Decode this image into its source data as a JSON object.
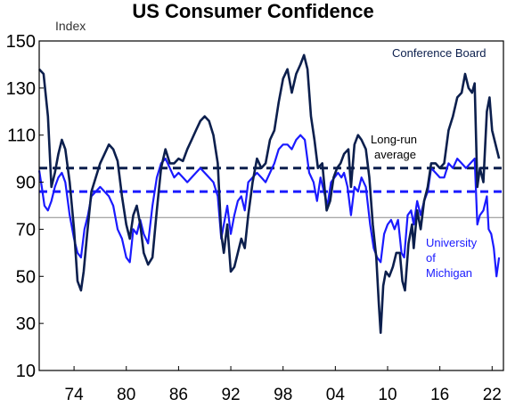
{
  "chart_data": {
    "type": "line",
    "title": "US Consumer Confidence",
    "ylabel": "Index",
    "xlabel": "",
    "ylim": [
      10,
      150
    ],
    "xlim": [
      1970,
      2023.3
    ],
    "yticks": [
      10,
      30,
      50,
      70,
      90,
      110,
      130,
      150
    ],
    "xticks": [
      {
        "year": 1974,
        "label": "74"
      },
      {
        "year": 1980,
        "label": "80"
      },
      {
        "year": 1986,
        "label": "86"
      },
      {
        "year": 1992,
        "label": "92"
      },
      {
        "year": 1998,
        "label": "98"
      },
      {
        "year": 2004,
        "label": "04"
      },
      {
        "year": 2010,
        "label": "10"
      },
      {
        "year": 2016,
        "label": "16"
      },
      {
        "year": 2022,
        "label": "22"
      }
    ],
    "grid": false,
    "colors": {
      "conference_board": "#0c1f4d",
      "michigan": "#1a1aff",
      "reference_line": "#8a8a8a",
      "axis": "#000000"
    },
    "series": [
      {
        "name": "Conference Board",
        "color": "#0c1f4d",
        "points": [
          [
            1970.0,
            138
          ],
          [
            1970.5,
            136
          ],
          [
            1971.0,
            118
          ],
          [
            1971.4,
            88
          ],
          [
            1971.8,
            94
          ],
          [
            1972.2,
            102
          ],
          [
            1972.6,
            108
          ],
          [
            1973.0,
            104
          ],
          [
            1973.5,
            90
          ],
          [
            1974.0,
            70
          ],
          [
            1974.4,
            48
          ],
          [
            1974.8,
            44
          ],
          [
            1975.1,
            52
          ],
          [
            1975.5,
            68
          ],
          [
            1976.0,
            86
          ],
          [
            1976.5,
            92
          ],
          [
            1977.0,
            98
          ],
          [
            1977.5,
            102
          ],
          [
            1978.0,
            106
          ],
          [
            1978.5,
            104
          ],
          [
            1979.0,
            99
          ],
          [
            1979.5,
            84
          ],
          [
            1980.0,
            72
          ],
          [
            1980.4,
            66
          ],
          [
            1980.8,
            76
          ],
          [
            1981.2,
            80
          ],
          [
            1981.6,
            72
          ],
          [
            1982.0,
            60
          ],
          [
            1982.5,
            55
          ],
          [
            1983.0,
            58
          ],
          [
            1983.5,
            78
          ],
          [
            1984.0,
            96
          ],
          [
            1984.5,
            104
          ],
          [
            1985.0,
            98
          ],
          [
            1985.5,
            98
          ],
          [
            1986.0,
            100
          ],
          [
            1986.5,
            99
          ],
          [
            1987.0,
            104
          ],
          [
            1987.5,
            108
          ],
          [
            1988.0,
            112
          ],
          [
            1988.5,
            116
          ],
          [
            1989.0,
            118
          ],
          [
            1989.5,
            116
          ],
          [
            1990.0,
            110
          ],
          [
            1990.5,
            98
          ],
          [
            1990.9,
            68
          ],
          [
            1991.2,
            60
          ],
          [
            1991.6,
            72
          ],
          [
            1992.0,
            52
          ],
          [
            1992.4,
            54
          ],
          [
            1992.8,
            60
          ],
          [
            1993.2,
            66
          ],
          [
            1993.6,
            62
          ],
          [
            1994.0,
            76
          ],
          [
            1994.5,
            90
          ],
          [
            1995.0,
            100
          ],
          [
            1995.5,
            96
          ],
          [
            1996.0,
            98
          ],
          [
            1996.5,
            108
          ],
          [
            1997.0,
            112
          ],
          [
            1997.5,
            124
          ],
          [
            1998.0,
            134
          ],
          [
            1998.5,
            138
          ],
          [
            1999.0,
            128
          ],
          [
            1999.5,
            136
          ],
          [
            2000.0,
            140
          ],
          [
            2000.4,
            144
          ],
          [
            2000.8,
            138
          ],
          [
            2001.2,
            118
          ],
          [
            2001.6,
            108
          ],
          [
            2002.0,
            96
          ],
          [
            2002.5,
            98
          ],
          [
            2003.0,
            78
          ],
          [
            2003.4,
            82
          ],
          [
            2003.8,
            92
          ],
          [
            2004.2,
            96
          ],
          [
            2004.6,
            98
          ],
          [
            2005.0,
            102
          ],
          [
            2005.5,
            104
          ],
          [
            2005.8,
            88
          ],
          [
            2006.2,
            106
          ],
          [
            2006.6,
            110
          ],
          [
            2007.0,
            108
          ],
          [
            2007.5,
            104
          ],
          [
            2007.9,
            92
          ],
          [
            2008.3,
            72
          ],
          [
            2008.7,
            58
          ],
          [
            2009.0,
            38
          ],
          [
            2009.2,
            26
          ],
          [
            2009.5,
            46
          ],
          [
            2009.8,
            52
          ],
          [
            2010.2,
            50
          ],
          [
            2010.6,
            54
          ],
          [
            2011.0,
            60
          ],
          [
            2011.4,
            60
          ],
          [
            2011.7,
            48
          ],
          [
            2012.0,
            44
          ],
          [
            2012.4,
            64
          ],
          [
            2012.8,
            72
          ],
          [
            2013.0,
            62
          ],
          [
            2013.4,
            78
          ],
          [
            2013.8,
            70
          ],
          [
            2014.2,
            82
          ],
          [
            2014.6,
            88
          ],
          [
            2015.0,
            98
          ],
          [
            2015.5,
            98
          ],
          [
            2016.0,
            96
          ],
          [
            2016.5,
            98
          ],
          [
            2017.0,
            112
          ],
          [
            2017.5,
            118
          ],
          [
            2018.0,
            126
          ],
          [
            2018.5,
            128
          ],
          [
            2018.9,
            136
          ],
          [
            2019.3,
            130
          ],
          [
            2019.7,
            128
          ],
          [
            2020.0,
            132
          ],
          [
            2020.3,
            88
          ],
          [
            2020.6,
            96
          ],
          [
            2021.0,
            90
          ],
          [
            2021.4,
            120
          ],
          [
            2021.7,
            126
          ],
          [
            2022.0,
            112
          ],
          [
            2022.4,
            106
          ],
          [
            2022.8,
            100
          ]
        ]
      },
      {
        "name": "University of Michigan",
        "color": "#1a1aff",
        "points": [
          [
            1970.0,
            95
          ],
          [
            1970.3,
            88
          ],
          [
            1970.6,
            80
          ],
          [
            1971.0,
            78
          ],
          [
            1971.4,
            82
          ],
          [
            1971.8,
            88
          ],
          [
            1972.2,
            92
          ],
          [
            1972.6,
            94
          ],
          [
            1973.0,
            90
          ],
          [
            1973.5,
            76
          ],
          [
            1974.0,
            66
          ],
          [
            1974.4,
            60
          ],
          [
            1974.8,
            58
          ],
          [
            1975.2,
            70
          ],
          [
            1975.6,
            76
          ],
          [
            1976.0,
            84
          ],
          [
            1976.5,
            86
          ],
          [
            1977.0,
            88
          ],
          [
            1977.5,
            86
          ],
          [
            1978.0,
            84
          ],
          [
            1978.5,
            80
          ],
          [
            1979.0,
            70
          ],
          [
            1979.5,
            66
          ],
          [
            1980.0,
            58
          ],
          [
            1980.4,
            56
          ],
          [
            1980.8,
            70
          ],
          [
            1981.2,
            68
          ],
          [
            1981.6,
            74
          ],
          [
            1982.0,
            68
          ],
          [
            1982.5,
            64
          ],
          [
            1983.0,
            80
          ],
          [
            1983.5,
            92
          ],
          [
            1984.0,
            98
          ],
          [
            1984.5,
            100
          ],
          [
            1985.0,
            96
          ],
          [
            1985.5,
            92
          ],
          [
            1986.0,
            94
          ],
          [
            1986.5,
            92
          ],
          [
            1987.0,
            90
          ],
          [
            1987.5,
            92
          ],
          [
            1988.0,
            94
          ],
          [
            1988.5,
            96
          ],
          [
            1989.0,
            94
          ],
          [
            1989.5,
            92
          ],
          [
            1990.0,
            90
          ],
          [
            1990.5,
            84
          ],
          [
            1990.9,
            66
          ],
          [
            1991.2,
            72
          ],
          [
            1991.6,
            80
          ],
          [
            1992.0,
            68
          ],
          [
            1992.4,
            76
          ],
          [
            1992.8,
            82
          ],
          [
            1993.2,
            84
          ],
          [
            1993.6,
            78
          ],
          [
            1994.0,
            90
          ],
          [
            1994.5,
            92
          ],
          [
            1995.0,
            94
          ],
          [
            1995.5,
            92
          ],
          [
            1996.0,
            90
          ],
          [
            1996.5,
            94
          ],
          [
            1997.0,
            98
          ],
          [
            1997.5,
            104
          ],
          [
            1998.0,
            106
          ],
          [
            1998.5,
            106
          ],
          [
            1999.0,
            104
          ],
          [
            1999.5,
            108
          ],
          [
            2000.0,
            110
          ],
          [
            2000.5,
            108
          ],
          [
            2001.0,
            94
          ],
          [
            2001.5,
            90
          ],
          [
            2001.9,
            82
          ],
          [
            2002.3,
            92
          ],
          [
            2002.7,
            86
          ],
          [
            2003.1,
            80
          ],
          [
            2003.5,
            90
          ],
          [
            2003.9,
            92
          ],
          [
            2004.3,
            94
          ],
          [
            2004.7,
            92
          ],
          [
            2005.0,
            94
          ],
          [
            2005.4,
            88
          ],
          [
            2005.8,
            76
          ],
          [
            2006.2,
            88
          ],
          [
            2006.6,
            86
          ],
          [
            2007.0,
            92
          ],
          [
            2007.5,
            88
          ],
          [
            2008.0,
            72
          ],
          [
            2008.4,
            62
          ],
          [
            2008.8,
            58
          ],
          [
            2009.2,
            56
          ],
          [
            2009.6,
            68
          ],
          [
            2010.0,
            72
          ],
          [
            2010.4,
            74
          ],
          [
            2010.8,
            70
          ],
          [
            2011.2,
            74
          ],
          [
            2011.6,
            60
          ],
          [
            2011.9,
            58
          ],
          [
            2012.3,
            76
          ],
          [
            2012.7,
            78
          ],
          [
            2013.0,
            72
          ],
          [
            2013.4,
            82
          ],
          [
            2013.8,
            76
          ],
          [
            2014.2,
            82
          ],
          [
            2014.6,
            86
          ],
          [
            2015.0,
            96
          ],
          [
            2015.5,
            94
          ],
          [
            2016.0,
            92
          ],
          [
            2016.5,
            92
          ],
          [
            2017.0,
            98
          ],
          [
            2017.5,
            96
          ],
          [
            2018.0,
            100
          ],
          [
            2018.5,
            98
          ],
          [
            2019.0,
            96
          ],
          [
            2019.5,
            98
          ],
          [
            2020.0,
            100
          ],
          [
            2020.3,
            72
          ],
          [
            2020.6,
            76
          ],
          [
            2021.0,
            78
          ],
          [
            2021.4,
            84
          ],
          [
            2021.6,
            70
          ],
          [
            2021.9,
            68
          ],
          [
            2022.2,
            62
          ],
          [
            2022.5,
            50
          ],
          [
            2022.8,
            58
          ]
        ]
      }
    ],
    "reference_lines": [
      {
        "value": 96,
        "style": "dashed",
        "color": "#0c1f4d",
        "series": "Conference Board"
      },
      {
        "value": 86,
        "style": "dashed",
        "color": "#1a1aff",
        "series": "University of Michigan"
      },
      {
        "value": 75,
        "style": "solid",
        "color": "#8a8a8a"
      }
    ],
    "annotations": {
      "conference_board": "Conference Board",
      "long_run_line1": "Long-run",
      "long_run_line2": "average",
      "michigan_line1": "University",
      "michigan_line2": "of",
      "michigan_line3": "Michigan"
    }
  }
}
